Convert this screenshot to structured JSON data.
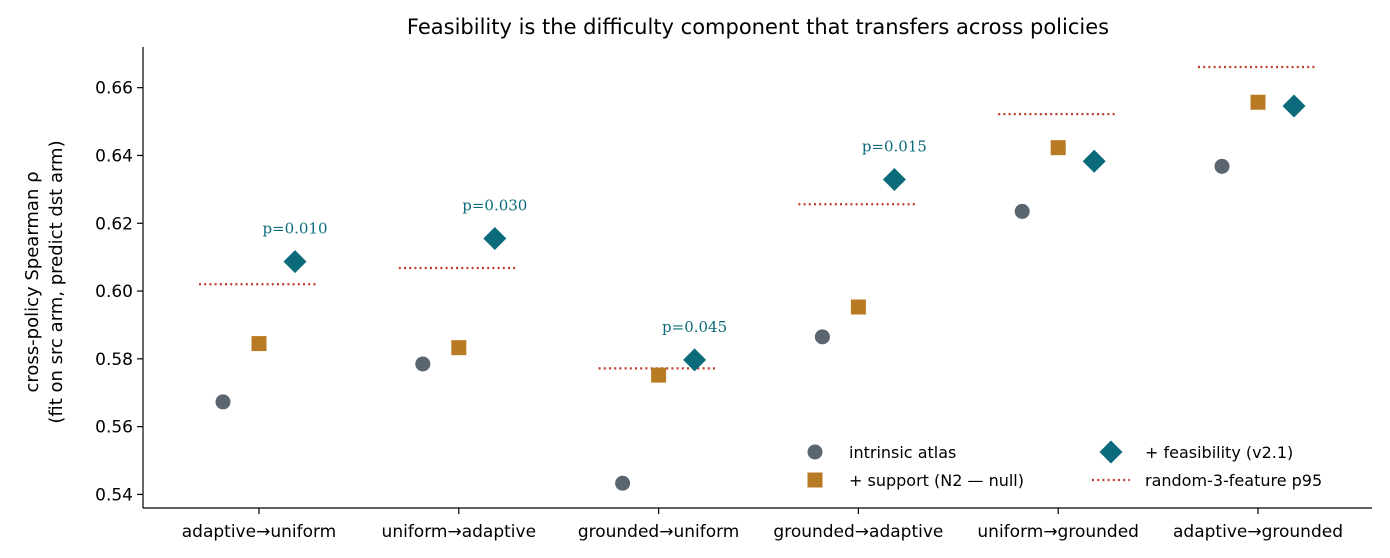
{
  "chart_data": {
    "type": "scatter",
    "title": "Feasibility is the difficulty component that transfers across policies",
    "ylabel_line1": "cross-policy Spearman ρ",
    "ylabel_line2": "(fit on src arm, predict dst arm)",
    "xlabel": "",
    "categories": [
      "adaptive→uniform",
      "uniform→adaptive",
      "grounded→uniform",
      "grounded→adaptive",
      "uniform→grounded",
      "adaptive→grounded"
    ],
    "ylim": [
      0.536,
      0.672
    ],
    "yticks": [
      0.54,
      0.56,
      0.58,
      0.6,
      0.62,
      0.64,
      0.66
    ],
    "ytick_labels": [
      "0.54",
      "0.56",
      "0.58",
      "0.60",
      "0.62",
      "0.64",
      "0.66"
    ],
    "grid": false,
    "legend_position": "bottom-right",
    "series": [
      {
        "name": "intrinsic atlas",
        "marker": "circle",
        "color": "#5a6570",
        "offset": -0.18,
        "values": [
          0.5673,
          0.5785,
          0.5433,
          0.5865,
          0.6235,
          0.6368
        ]
      },
      {
        "name": "+ support (N2 — null)",
        "marker": "square",
        "color": "#b87a22",
        "offset": 0.0,
        "values": [
          0.5845,
          0.5833,
          0.5752,
          0.5953,
          0.6423,
          0.6557
        ]
      },
      {
        "name": "+ feasibility (v2.1)",
        "marker": "diamond",
        "color": "#0b6b7a",
        "offset": 0.18,
        "values": [
          0.6087,
          0.6155,
          0.5797,
          0.6329,
          0.6383,
          0.6546
        ]
      }
    ],
    "reference": {
      "name": "random-3-feature p95",
      "color": "#c0392b",
      "style": "dotted",
      "values": [
        0.602,
        0.6068,
        0.5772,
        0.6256,
        0.6522,
        0.6661
      ]
    },
    "annotations": [
      {
        "category_index": 0,
        "text": "p=0.010"
      },
      {
        "category_index": 1,
        "text": "p=0.030"
      },
      {
        "category_index": 2,
        "text": "p=0.045"
      },
      {
        "category_index": 3,
        "text": "p=0.015"
      }
    ],
    "annotation_color": "#0b6b7a"
  }
}
